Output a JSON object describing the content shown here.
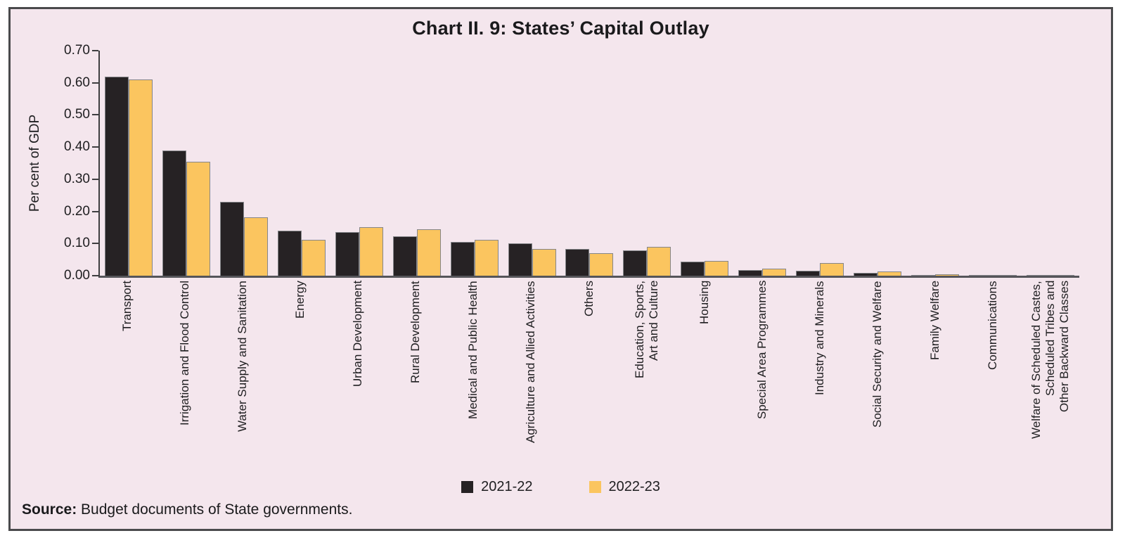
{
  "title": "Chart II. 9: States’ Capital Outlay",
  "source": {
    "label": "Source:",
    "text": "Budget documents of State governments."
  },
  "colors": {
    "background": "#F4E6ED",
    "frame_border": "#4a4a4c",
    "axis": "#3f3f41",
    "series_2021_22": "#262224",
    "series_2022_23": "#FBC55F"
  },
  "chart_data": {
    "type": "bar",
    "title": "Chart II. 9: States’ Capital Outlay",
    "xlabel": "",
    "ylabel": "Per cent of GDP",
    "ylim": [
      0,
      0.7
    ],
    "y_ticks": [
      "0.70",
      "0.60",
      "0.50",
      "0.40",
      "0.30",
      "0.20",
      "0.10",
      "0.00"
    ],
    "grid": false,
    "legend_position": "bottom",
    "categories": [
      "Transport",
      "Irrigation and Flood Control",
      "Water Supply and Sanitation",
      "Energy",
      "Urban Development",
      "Rural Development",
      "Medical and Public Health",
      "Agriculture and Allied Activities",
      "Others",
      "Education, Sports,\nArt and Culture",
      "Housing",
      "Special Area Programmes",
      "Industry and Minerals",
      "Social Security and Welfare",
      "Family Welfare",
      "Communications",
      "Welfare of Scheduled Castes,\nScheduled Tribes and\nOther Backward Classes"
    ],
    "series": [
      {
        "name": "2021-22",
        "color": "#262224",
        "values": [
          0.62,
          0.39,
          0.23,
          0.14,
          0.135,
          0.122,
          0.105,
          0.101,
          0.084,
          0.079,
          0.043,
          0.018,
          0.016,
          0.008,
          0.003,
          0.001,
          0.001
        ]
      },
      {
        "name": "2022-23",
        "color": "#FBC55F",
        "values": [
          0.61,
          0.355,
          0.182,
          0.112,
          0.152,
          0.144,
          0.112,
          0.083,
          0.07,
          0.09,
          0.047,
          0.023,
          0.04,
          0.013,
          0.005,
          0.002,
          0.001
        ]
      }
    ]
  }
}
